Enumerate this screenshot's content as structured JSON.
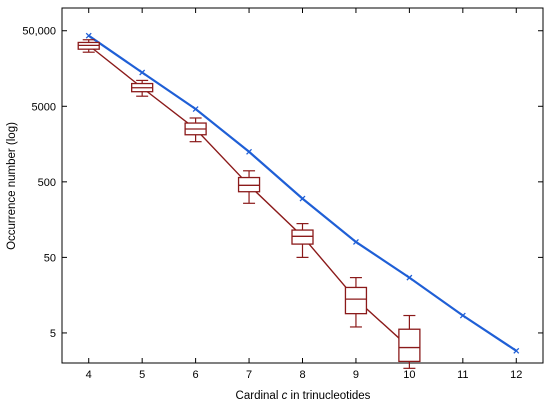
{
  "chart_data": {
    "type": "line",
    "xlabel_prefix": "Cardinal ",
    "xlabel_var": "c",
    "xlabel_suffix": " in trinucleotides",
    "ylabel": "Occurrence number (log)",
    "y_scale": "log",
    "ylim": [
      2,
      100000
    ],
    "xlim": [
      3.5,
      12.5
    ],
    "grid": false,
    "x_ticks": [
      4,
      5,
      6,
      7,
      8,
      9,
      10,
      11,
      12
    ],
    "x_tick_labels": [
      "4",
      "5",
      "6",
      "7",
      "8",
      "9",
      "10",
      "11",
      "12"
    ],
    "y_ticks": [
      5,
      50,
      500,
      5000,
      50000
    ],
    "y_tick_labels": [
      "5",
      "50",
      "500",
      "5000",
      "50,000"
    ],
    "series": [
      {
        "color": "#1f5fd6",
        "style": "line-with-cross-markers",
        "x": [
          4,
          5,
          6,
          7,
          8,
          9,
          10,
          11,
          12
        ],
        "y": [
          43000,
          14000,
          4600,
          1250,
          300,
          80,
          27,
          8.5,
          2.9
        ]
      },
      {
        "color": "#8b1a1a",
        "style": "boxplot-with-median-line",
        "x": [
          4,
          5,
          6,
          7,
          8,
          9,
          10
        ],
        "boxes": [
          {
            "min": 26000,
            "q1": 28500,
            "median": 32000,
            "q3": 35000,
            "max": 38000
          },
          {
            "min": 6800,
            "q1": 7800,
            "median": 8800,
            "q3": 10000,
            "max": 11000
          },
          {
            "min": 1700,
            "q1": 2100,
            "median": 2500,
            "q3": 3000,
            "max": 3500
          },
          {
            "min": 260,
            "q1": 370,
            "median": 450,
            "q3": 570,
            "max": 700
          },
          {
            "min": 50,
            "q1": 75,
            "median": 95,
            "q3": 115,
            "max": 140
          },
          {
            "min": 6,
            "q1": 9,
            "median": 14,
            "q3": 20,
            "max": 27
          },
          {
            "min": 1.7,
            "q1": 2.1,
            "median": 3.2,
            "q3": 5.6,
            "max": 8.5
          }
        ]
      }
    ]
  }
}
